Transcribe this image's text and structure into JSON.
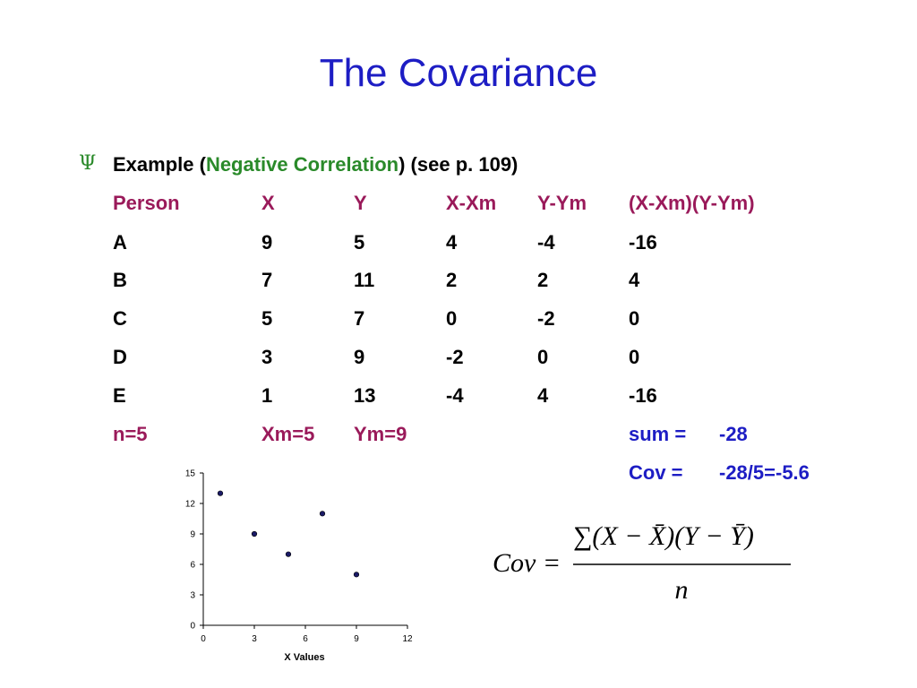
{
  "slide": {
    "title": "The Covariance",
    "bullet_symbol": "Ψ",
    "intro_prefix": "Example (",
    "intro_highlight": "Negative Correlation",
    "intro_suffix": ") (see p. 109)"
  },
  "table": {
    "headers": [
      "Person",
      "X",
      "Y",
      "X-Xm",
      "Y-Ym",
      "(X-Xm)(Y-Ym)"
    ],
    "rows": [
      [
        "A",
        "9",
        "5",
        "4",
        "-4",
        "-16"
      ],
      [
        "B",
        "7",
        "11",
        "2",
        "2",
        "4"
      ],
      [
        "C",
        "5",
        "7",
        "0",
        "-2",
        "0"
      ],
      [
        "D",
        "3",
        "9",
        "-2",
        "0",
        "0"
      ],
      [
        "E",
        "1",
        "13",
        "-4",
        "4",
        "-16"
      ]
    ],
    "summary": {
      "n": "n=5",
      "xm": "Xm=5",
      "ym": "Ym=9",
      "sum_label": "sum =",
      "sum_value": "-28",
      "cov_label": "Cov =",
      "cov_value": "-28/5=-5.6"
    }
  },
  "chart_data": {
    "type": "scatter",
    "xlabel": "X Values",
    "ylabel": "",
    "xlim": [
      0,
      12
    ],
    "ylim": [
      0,
      15
    ],
    "x_ticks": [
      "0",
      "3",
      "6",
      "9",
      "12"
    ],
    "y_ticks": [
      "0",
      "3",
      "6",
      "9",
      "12",
      "15"
    ],
    "x": [
      1,
      3,
      5,
      7,
      9
    ],
    "y": [
      13,
      9,
      7,
      11,
      5
    ],
    "grid": false,
    "point_color": "#1a1a66"
  },
  "formula": {
    "lhs": "Cov =",
    "numerator": "∑(X − X̄)(Y − Ȳ)",
    "denominator": "n"
  },
  "colors": {
    "title": "#1d1dc4",
    "header": "#9a1a5a",
    "highlight": "#2a8a2a",
    "summary_right": "#1d1dc4"
  }
}
